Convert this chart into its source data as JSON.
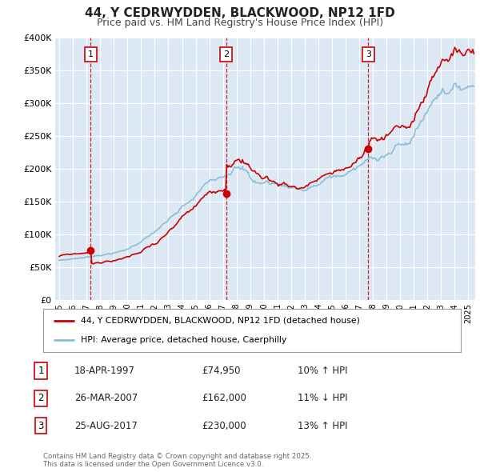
{
  "title": "44, Y CEDRWYDDEN, BLACKWOOD, NP12 1FD",
  "subtitle": "Price paid vs. HM Land Registry's House Price Index (HPI)",
  "title_fontsize": 11,
  "subtitle_fontsize": 9,
  "background_color": "#ffffff",
  "plot_bg_color": "#dce9f5",
  "grid_color": "#ffffff",
  "ylim": [
    0,
    400000
  ],
  "xlim_start": 1994.7,
  "xlim_end": 2025.5,
  "yticks": [
    0,
    50000,
    100000,
    150000,
    200000,
    250000,
    300000,
    350000,
    400000
  ],
  "ytick_labels": [
    "£0",
    "£50K",
    "£100K",
    "£150K",
    "£200K",
    "£250K",
    "£300K",
    "£350K",
    "£400K"
  ],
  "xtick_years": [
    1995,
    1996,
    1997,
    1998,
    1999,
    2000,
    2001,
    2002,
    2003,
    2004,
    2005,
    2006,
    2007,
    2008,
    2009,
    2010,
    2011,
    2012,
    2013,
    2014,
    2015,
    2016,
    2017,
    2018,
    2019,
    2020,
    2021,
    2022,
    2023,
    2024,
    2025
  ],
  "sale_color": "#cc0000",
  "hpi_color": "#89bdd8",
  "sale_linewidth": 1.2,
  "hpi_linewidth": 1.2,
  "transaction_points": [
    {
      "num": "1",
      "year": 1997.29,
      "price": 74950
    },
    {
      "num": "2",
      "year": 2007.23,
      "price": 162000
    },
    {
      "num": "3",
      "year": 2017.65,
      "price": 230000
    }
  ],
  "legend_entries": [
    {
      "label": "44, Y CEDRWYDDEN, BLACKWOOD, NP12 1FD (detached house)",
      "color": "#cc0000"
    },
    {
      "label": "HPI: Average price, detached house, Caerphilly",
      "color": "#89bdd8"
    }
  ],
  "table_rows": [
    {
      "num": "1",
      "date": "18-APR-1997",
      "price": "£74,950",
      "pct": "10% ↑ HPI"
    },
    {
      "num": "2",
      "date": "26-MAR-2007",
      "price": "£162,000",
      "pct": "11% ↓ HPI"
    },
    {
      "num": "3",
      "date": "25-AUG-2017",
      "price": "£230,000",
      "pct": "13% ↑ HPI"
    }
  ],
  "footer": "Contains HM Land Registry data © Crown copyright and database right 2025.\nThis data is licensed under the Open Government Licence v3.0."
}
